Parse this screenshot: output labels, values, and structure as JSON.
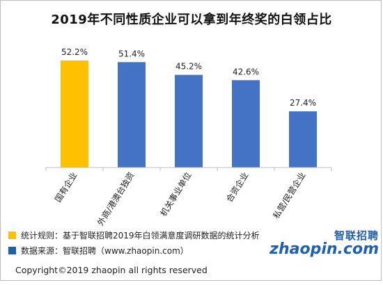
{
  "title": "2019年不同性质企业可以拿到年终奖的白领占比",
  "chart_data": {
    "type": "bar",
    "title": "2019年不同性质企业可以拿到年终奖的白领占比",
    "categories": [
      "国有企业",
      "外商/港澳台独资",
      "机关事业单位",
      "合资企业",
      "私营/民营企业"
    ],
    "values": [
      52.2,
      51.4,
      45.2,
      42.6,
      27.4
    ],
    "value_labels": [
      "52.2%",
      "51.4%",
      "45.2%",
      "42.6%",
      "27.4%"
    ],
    "unit": "%",
    "colors": [
      "#ffc000",
      "#4472c4",
      "#4472c4",
      "#4472c4",
      "#4472c4"
    ],
    "ylim": [
      0,
      60
    ],
    "grid": false,
    "xlabel": "",
    "ylabel": ""
  },
  "notes": [
    {
      "color": "#ffc000",
      "text": "统计规则：基于智联招聘2019年白领满意度调研数据的统计分析"
    },
    {
      "color": "#1f5fb0",
      "text": "数据来源：智联招聘（www.zhaopin.com）"
    }
  ],
  "logo": {
    "cn": "智联招聘",
    "en": "zhaopin.com"
  },
  "copyright": "Copyright©2019 zhaopin all rights reserved"
}
